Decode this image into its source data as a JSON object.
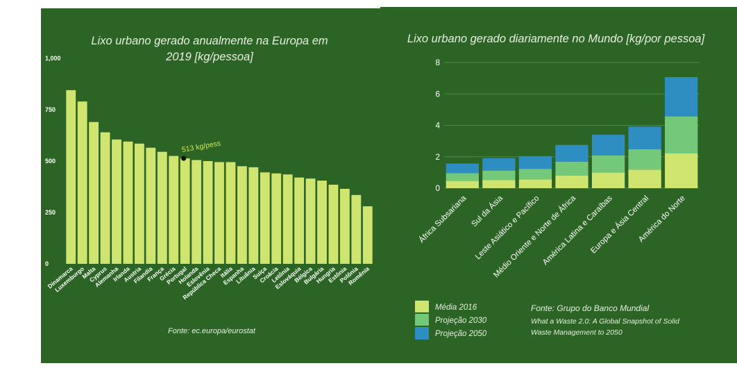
{
  "colors": {
    "background": "#2b6424",
    "bar_europe": "#cfe56f",
    "media_2016": "#cfe56f",
    "projecao_2030": "#74c87a",
    "projecao_2050": "#2f8ec1",
    "gridline": "#4d8a45"
  },
  "chart_data": [
    {
      "type": "bar",
      "title_line1": "Lixo urbano gerado anualmente na Europa em",
      "title_line2": "2019 [kg/pessoa]",
      "categories": [
        "Dinamarca",
        "Luxemburgo",
        "Malta",
        "Cyprus",
        "Alemanha",
        "Irlanda",
        "Austria",
        "Filandia",
        "França",
        "Grécia",
        "Portugal",
        "Holanda",
        "Eslovênia",
        "República Checa",
        "Itália",
        "Espanha",
        "Lituânia",
        "Suiça",
        "Croácia",
        "Letônia",
        "Eslováquia",
        "Bélgica",
        "Bulgária",
        "Hungria",
        "Estônia",
        "Polônia",
        "Romênia"
      ],
      "values": [
        845,
        790,
        690,
        640,
        605,
        595,
        585,
        565,
        545,
        525,
        513,
        505,
        500,
        495,
        495,
        475,
        470,
        445,
        440,
        435,
        420,
        415,
        405,
        385,
        365,
        335,
        280
      ],
      "ylim": [
        0,
        1000
      ],
      "yticks": [
        0,
        250,
        500,
        750,
        1000
      ],
      "ytick_labels": [
        "0",
        "250",
        "500",
        "750",
        "1,000"
      ],
      "annotation": {
        "category": "Portugal",
        "value": 513,
        "text": "513 kg/pess"
      },
      "source": "Fonte: ec.europa/eurostat"
    },
    {
      "type": "bar",
      "stacked": true,
      "title": "Lixo urbano gerado diariamente no Mundo [kg/por pessoa]",
      "categories": [
        "África Subsariana",
        "Sul da Ásia",
        "Leste Asiático e Pacífico",
        "Médio Oriente e Norte de África",
        "América Latina e Caraíbas",
        "Europa e Ásia Central",
        "América do Norte"
      ],
      "series": [
        {
          "name": "Média 2016",
          "values": [
            0.46,
            0.52,
            0.56,
            0.81,
            0.99,
            1.18,
            2.21
          ]
        },
        {
          "name": "Projeção 2030",
          "values": [
            0.49,
            0.6,
            0.67,
            0.88,
            1.1,
            1.3,
            2.36
          ]
        },
        {
          "name": "Projeção 2050",
          "values": [
            0.62,
            0.79,
            0.81,
            1.06,
            1.31,
            1.44,
            2.5
          ]
        }
      ],
      "ylim": [
        0,
        8
      ],
      "yticks": [
        0,
        2,
        4,
        6,
        8
      ],
      "source_line1": "Fonte: Grupo do Banco Mundial",
      "source_line2": "What a Waste 2.0: A Global Snapshot of Solid",
      "source_line3": "Waste Management to 2050"
    }
  ]
}
